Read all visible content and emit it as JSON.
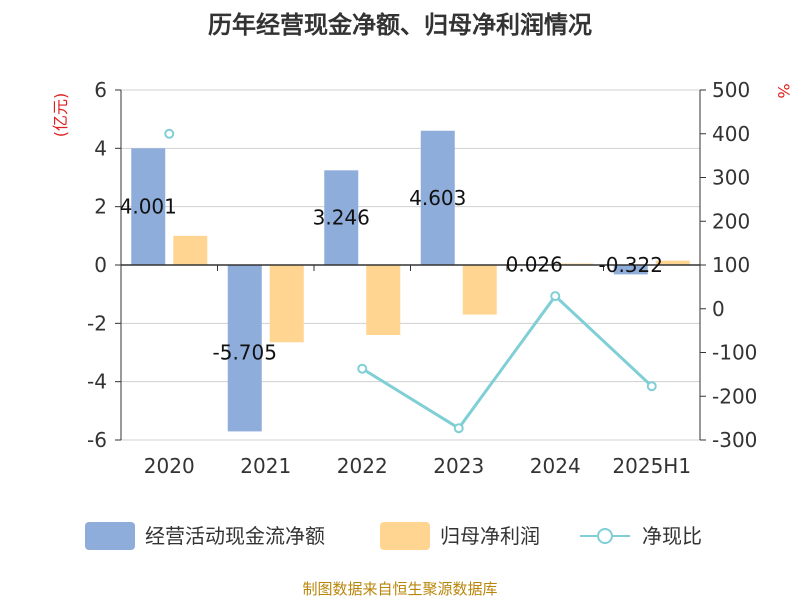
{
  "chart_data": {
    "type": "bar",
    "title": "历年经营现金净额、归母净利润情况",
    "categories": [
      "2020",
      "2021",
      "2022",
      "2023",
      "2024",
      "2025H1"
    ],
    "series": [
      {
        "name": "经营活动现金流净额",
        "type": "bar",
        "axis": "left",
        "values": [
          4.001,
          -5.705,
          3.246,
          4.603,
          0.026,
          -0.322
        ],
        "color": "#8eaddb"
      },
      {
        "name": "归母净利润",
        "type": "bar",
        "axis": "left",
        "values": [
          1.0,
          -2.65,
          -2.4,
          -1.7,
          0.05,
          0.15
        ],
        "color": "#ffd591"
      },
      {
        "name": "净现比",
        "type": "line",
        "axis": "right",
        "values": [
          400,
          null,
          -137,
          -273,
          29,
          -177
        ],
        "color": "#80cfd6"
      }
    ],
    "data_labels": [
      "4.001",
      "-5.705",
      "3.246",
      "4.603",
      "0.026",
      "-0.322"
    ],
    "y_left": {
      "unit": "(亿元)",
      "min": -6,
      "max": 6,
      "ticks": [
        "-6",
        "-4",
        "-2",
        "0",
        "2",
        "4",
        "6"
      ]
    },
    "y_right": {
      "unit": "%",
      "min": -300,
      "max": 500,
      "ticks": [
        "-300",
        "-200",
        "-100",
        "0",
        "100",
        "200",
        "300",
        "400",
        "500"
      ]
    },
    "grid": true,
    "legend_position": "bottom",
    "source": "制图数据来自恒生聚源数据库"
  }
}
